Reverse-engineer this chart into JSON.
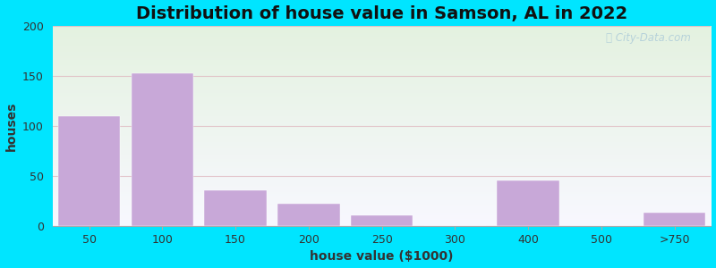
{
  "title": "Distribution of house value in Samson, AL in 2022",
  "xlabel": "house value ($1000)",
  "ylabel": "houses",
  "bar_labels": [
    "50",
    "100",
    "150",
    "200",
    "250",
    "300",
    "400",
    "500",
    ">750"
  ],
  "bar_values": [
    110,
    153,
    36,
    22,
    11,
    0,
    45,
    0,
    13
  ],
  "bar_color": "#c8a8d8",
  "bar_edgecolor": "#c8a8d8",
  "ylim": [
    0,
    200
  ],
  "yticks": [
    0,
    50,
    100,
    150,
    200
  ],
  "background_top_color": "#e4f2e0",
  "background_bottom_color": "#f8f8ff",
  "outer_background": "#00e5ff",
  "title_fontsize": 14,
  "axis_label_fontsize": 10,
  "tick_fontsize": 9,
  "watermark_text": "City-Data.com",
  "grid_color": "#e0b8c0",
  "grid_alpha": 0.8
}
